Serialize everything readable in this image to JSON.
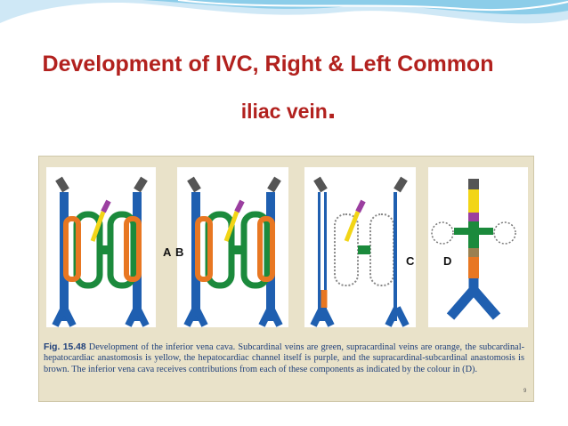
{
  "slide": {
    "title_line1": "Development of IVC, Right & Left Common",
    "title_line2": "iliac vein",
    "title_period": "."
  },
  "figure": {
    "panel_labels": [
      "A",
      "B",
      "C",
      "D"
    ],
    "caption_label": "Fig. 15.48",
    "caption_text": "Development of the inferior vena cava. Subcardinal veins are green, supracardinal veins are orange, the subcardinal-hepatocardiac anastomosis is yellow, the hepatocardiac channel itself is purple, and the supracardinal-subcardinal anastomosis is brown. The inferior vena cava receives contributions from each of these components as indicated by the colour in (D).",
    "page_number": "9"
  },
  "colors": {
    "title": "#b2211e",
    "subcardinal": "#1b8a3c",
    "supracardinal": "#e87722",
    "anastomosis_yellow": "#f2d516",
    "hepatocardiac_purple": "#9b3fa0",
    "supra_sub_brown": "#9b8050",
    "cardinal_blue": "#1f5fb0"
  }
}
